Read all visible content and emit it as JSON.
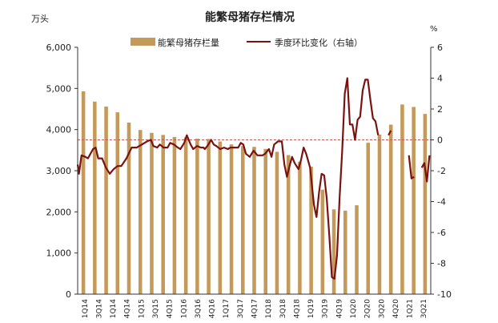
{
  "chart_data": {
    "type": "bar",
    "title": "能繁母猪存栏情况",
    "left_axis_unit": "万头",
    "right_axis_unit": "%",
    "left_ylim": [
      0,
      6000
    ],
    "left_ticks": [
      "0",
      "1,000",
      "2,000",
      "3,000",
      "4,000",
      "5,000",
      "6,000"
    ],
    "right_ylim": [
      -10,
      6
    ],
    "right_ticks": [
      "-10",
      "-8",
      "-6",
      "-4",
      "-2",
      "0",
      "2",
      "4",
      "6"
    ],
    "grid": false,
    "legend_position": "top-center",
    "x_tick_labels": [
      "1Q14",
      "3Q14",
      "1Q14",
      "4Q14",
      "1Q15",
      "3Q15",
      "4Q15",
      "1Q16",
      "3Q16",
      "4Q16",
      "1Q17",
      "3Q17",
      "4Q17",
      "1Q18",
      "3Q18",
      "4Q18",
      "1Q19",
      "3Q19",
      "4Q19",
      "1Q20",
      "2Q20",
      "3Q20",
      "4Q20",
      "1Q21",
      "3Q21"
    ],
    "bars": {
      "name": "能繁母猪存栏量",
      "color": "#C49A5A",
      "values": [
        4930,
        4680,
        4560,
        4420,
        4170,
        3990,
        3920,
        3870,
        3820,
        3810,
        3780,
        3770,
        3710,
        3640,
        3600,
        3580,
        3530,
        3460,
        3380,
        3220,
        3100,
        2540,
        2060,
        2030,
        2160,
        3680,
        3880,
        4120,
        4610,
        4550,
        4380
      ]
    },
    "line": {
      "name": "季度环比变化（右轴）",
      "color": "#7A1212",
      "points": [
        [
          0,
          -1.6
        ],
        [
          2,
          -2.2
        ],
        [
          6,
          -1.0
        ],
        [
          12,
          -1.1
        ],
        [
          16,
          -1.2
        ],
        [
          24,
          -0.6
        ],
        [
          28,
          -0.5
        ],
        [
          32,
          -1.2
        ],
        [
          38,
          -1.2
        ],
        [
          44,
          -1.8
        ],
        [
          50,
          -2.2
        ],
        [
          56,
          -1.9
        ],
        [
          62,
          -1.7
        ],
        [
          68,
          -1.7
        ],
        [
          76,
          -1.2
        ],
        [
          84,
          -0.5
        ],
        [
          92,
          -0.5
        ],
        [
          100,
          -0.3
        ],
        [
          108,
          -0.1
        ],
        [
          114,
          0.0
        ],
        [
          118,
          -0.4
        ],
        [
          124,
          -0.5
        ],
        [
          128,
          -0.3
        ],
        [
          134,
          -0.5
        ],
        [
          140,
          -0.5
        ],
        [
          144,
          -0.2
        ],
        [
          150,
          -0.3
        ],
        [
          156,
          -0.5
        ],
        [
          160,
          -0.6
        ],
        [
          166,
          -0.2
        ],
        [
          170,
          0.3
        ],
        [
          176,
          -0.3
        ],
        [
          180,
          -0.6
        ],
        [
          186,
          -0.4
        ],
        [
          192,
          -0.5
        ],
        [
          196,
          -0.5
        ],
        [
          198,
          -0.6
        ],
        [
          202,
          -0.4
        ],
        [
          208,
          0.0
        ],
        [
          212,
          -0.3
        ],
        [
          216,
          -0.4
        ],
        [
          222,
          -0.6
        ],
        [
          228,
          -0.5
        ],
        [
          234,
          -0.6
        ],
        [
          238,
          -0.5
        ],
        [
          244,
          -0.5
        ],
        [
          250,
          -0.5
        ],
        [
          254,
          -0.2
        ],
        [
          258,
          -0.3
        ],
        [
          262,
          -0.9
        ],
        [
          268,
          -1.1
        ],
        [
          274,
          -0.7
        ],
        [
          280,
          -1.0
        ],
        [
          288,
          -1.0
        ],
        [
          292,
          -0.9
        ],
        [
          298,
          -0.6
        ],
        [
          302,
          -1.1
        ],
        [
          306,
          -0.3
        ],
        [
          312,
          -0.1
        ],
        [
          318,
          -0.1
        ],
        [
          322,
          -1.6
        ],
        [
          326,
          -2.4
        ],
        [
          330,
          -1.7
        ],
        [
          334,
          -1.1
        ],
        [
          338,
          -1.5
        ],
        [
          344,
          -1.9
        ],
        [
          348,
          -1.3
        ],
        [
          352,
          -0.5
        ],
        [
          356,
          -0.9
        ],
        [
          362,
          -1.8
        ],
        [
          368,
          -4.2
        ],
        [
          372,
          -5.0
        ],
        [
          376,
          -3.4
        ],
        [
          380,
          -2.2
        ],
        [
          384,
          -2.3
        ],
        [
          388,
          -3.8
        ],
        [
          392,
          -6.2
        ],
        [
          396,
          -8.9
        ],
        [
          400,
          -9.0
        ],
        [
          404,
          -7.5
        ],
        [
          408,
          -3.8
        ],
        [
          412,
          -0.8
        ],
        [
          416,
          3.0
        ],
        [
          420,
          4.0
        ],
        [
          424,
          1.0
        ],
        [
          428,
          1.0
        ],
        [
          432,
          0.0
        ],
        [
          436,
          1.3
        ],
        [
          440,
          1.5
        ],
        [
          444,
          3.2
        ],
        [
          448,
          3.9
        ],
        [
          452,
          3.9
        ],
        [
          456,
          2.6
        ],
        [
          460,
          1.4
        ],
        [
          464,
          1.2
        ],
        [
          468,
          0.3
        ],
        [
          472,
          0.5
        ],
        [
          476,
          0.9
        ],
        [
          480,
          0.5
        ],
        [
          484,
          0.3
        ],
        [
          488,
          0.6
        ],
        [
          492,
          0.6
        ],
        [
          496,
          1.1
        ],
        [
          500,
          0.5
        ],
        [
          504,
          -0.5
        ],
        [
          508,
          -0.9
        ],
        [
          512,
          -1.0
        ],
        [
          516,
          -1.0
        ],
        [
          520,
          -2.5
        ],
        [
          524,
          -2.4
        ],
        [
          528,
          -2.0
        ],
        [
          532,
          -2.0
        ],
        [
          536,
          -1.8
        ],
        [
          540,
          -1.5
        ],
        [
          544,
          -2.7
        ],
        [
          548,
          -1.0
        ]
      ],
      "segments": [
        [
          0,
          96
        ],
        [
          96,
          98
        ],
        [
          98,
          101
        ],
        [
          101,
          107
        ],
        [
          107,
          110
        ],
        [
          110,
          118
        ]
      ],
      "visible_segments": [
        0,
        2,
        4
      ]
    },
    "reference_line": {
      "value": 0,
      "axis": "right",
      "style": "dashed",
      "color": "#C45A5A"
    }
  }
}
